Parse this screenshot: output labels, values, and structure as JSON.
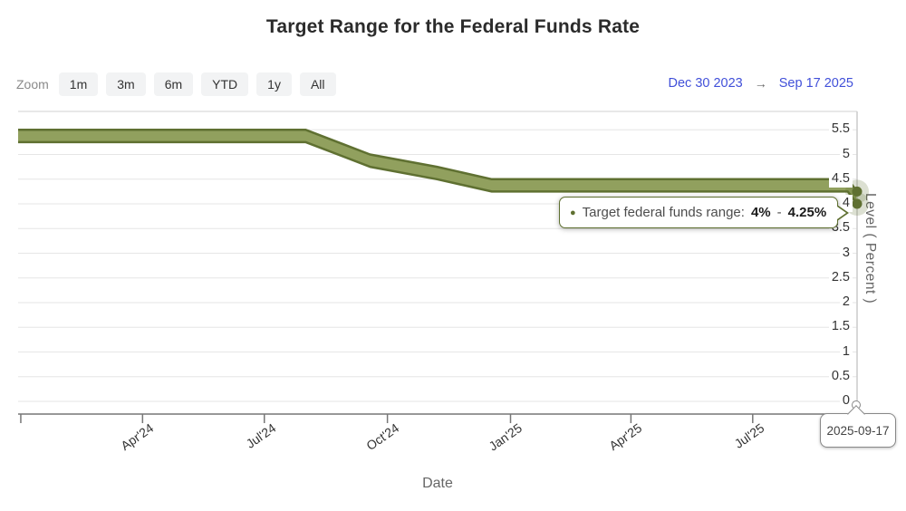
{
  "title": "Target Range for the Federal Funds Rate",
  "range_selector": {
    "zoom_label": "Zoom",
    "buttons": [
      "1m",
      "3m",
      "6m",
      "YTD",
      "1y",
      "All"
    ],
    "from_date": "Dec 30 2023",
    "arrow": "→",
    "to_date": "Sep 17 2025"
  },
  "tooltip": {
    "bullet": "●",
    "series_label": "Target federal funds range:",
    "low": "4%",
    "separator": "-",
    "high": "4.25%"
  },
  "crosshair_label": "2025-09-17",
  "chart_data": {
    "type": "area",
    "subtype": "arearange-band",
    "title": "Target Range for the Federal Funds Rate",
    "xlabel": "Date",
    "ylabel": "Level ( Percent )",
    "x_range": [
      "2023-12-30",
      "2025-09-17"
    ],
    "ylim": [
      0,
      5.87
    ],
    "grid": true,
    "legend": "none",
    "y_ticks": [
      0,
      0.5,
      1,
      1.5,
      2,
      2.5,
      3,
      3.5,
      4,
      4.5,
      5,
      5.5
    ],
    "x_ticks": [
      {
        "date": "2024-01-01",
        "label": ""
      },
      {
        "date": "2024-04-01",
        "label": "Apr'24"
      },
      {
        "date": "2024-07-01",
        "label": "Jul'24"
      },
      {
        "date": "2024-10-01",
        "label": "Oct'24"
      },
      {
        "date": "2025-01-01",
        "label": "Jan'25"
      },
      {
        "date": "2025-04-01",
        "label": "Apr'25"
      },
      {
        "date": "2025-07-01",
        "label": "Jul'25"
      }
    ],
    "series": [
      {
        "name": "Target federal funds range",
        "points": [
          {
            "date": "2023-12-30",
            "low": 5.25,
            "high": 5.5
          },
          {
            "date": "2024-08-01",
            "low": 5.25,
            "high": 5.5
          },
          {
            "date": "2024-09-18",
            "low": 4.75,
            "high": 5.0
          },
          {
            "date": "2024-11-07",
            "low": 4.5,
            "high": 4.75
          },
          {
            "date": "2024-12-18",
            "low": 4.25,
            "high": 4.5
          },
          {
            "date": "2025-09-10",
            "low": 4.25,
            "high": 4.5
          },
          {
            "date": "2025-09-17",
            "low": 4.0,
            "high": 4.25
          }
        ]
      }
    ],
    "hovered_point": {
      "date": "2025-09-17",
      "low": 4.0,
      "high": 4.25
    }
  },
  "colors": {
    "band_fill": "#91a05e",
    "band_edge": "#5f7031",
    "marker_halo": "rgba(95,112,49,0.22)",
    "grid": "#e6e6e6",
    "plot_border": "#e8e8e8",
    "axis_line": "#777777",
    "crosshair": "#cccccc",
    "link_blue": "#4150d9",
    "tooltip_border": "#5f7031"
  }
}
